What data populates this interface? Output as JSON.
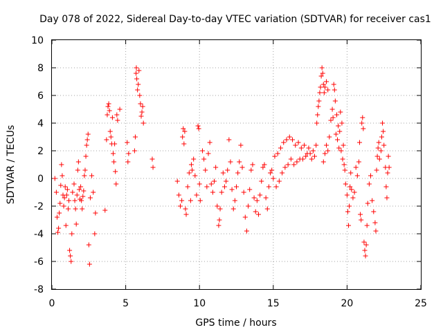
{
  "chart_data": {
    "type": "scatter",
    "title": "Day 078 of 2022, Sidereal Day-to-day VTEC variation (SDTVAR) for receiver cas1",
    "xlabel": "GPS time / hours",
    "ylabel": "SDTVAR / TECUs",
    "xlim": [
      0,
      25
    ],
    "ylim": [
      -8,
      10
    ],
    "xticks": [
      "0",
      "5",
      "10",
      "15",
      "20",
      "25"
    ],
    "yticks": [
      "-8",
      "-6",
      "-4",
      "-2",
      "0",
      "2",
      "4",
      "6",
      "8",
      "10"
    ],
    "grid": true,
    "marker": "+",
    "series_color": "#ff0000",
    "series": [
      {
        "name": "SDTVAR",
        "points": [
          [
            0.2,
            0.0
          ],
          [
            0.3,
            -1.0
          ],
          [
            0.35,
            -2.8
          ],
          [
            0.4,
            -3.9
          ],
          [
            0.45,
            -3.6
          ],
          [
            0.5,
            -2.5
          ],
          [
            0.55,
            -1.8
          ],
          [
            0.6,
            -0.5
          ],
          [
            0.65,
            1.0
          ],
          [
            0.7,
            0.2
          ],
          [
            0.75,
            -1.2
          ],
          [
            0.8,
            -2.0
          ],
          [
            0.85,
            -1.4
          ],
          [
            0.9,
            -0.6
          ],
          [
            0.95,
            -3.4
          ],
          [
            1.0,
            -1.2
          ],
          [
            1.05,
            -0.8
          ],
          [
            1.1,
            -2.2
          ],
          [
            1.15,
            -1.6
          ],
          [
            1.2,
            -5.2
          ],
          [
            1.25,
            -5.6
          ],
          [
            1.3,
            -6.0
          ],
          [
            1.35,
            -4.0
          ],
          [
            1.4,
            -1.0
          ],
          [
            1.5,
            -0.4
          ],
          [
            1.55,
            -1.6
          ],
          [
            1.6,
            -2.2
          ],
          [
            1.65,
            -3.3
          ],
          [
            1.7,
            -1.2
          ],
          [
            1.75,
            0.6
          ],
          [
            1.8,
            1.2
          ],
          [
            1.85,
            -0.8
          ],
          [
            1.9,
            -1.5
          ],
          [
            1.95,
            -0.6
          ],
          [
            2.0,
            -1.6
          ],
          [
            2.05,
            -2.2
          ],
          [
            2.1,
            -1.3
          ],
          [
            2.15,
            -0.9
          ],
          [
            2.2,
            0.2
          ],
          [
            2.25,
            0.6
          ],
          [
            2.3,
            1.6
          ],
          [
            2.35,
            2.4
          ],
          [
            2.4,
            2.8
          ],
          [
            2.45,
            3.2
          ],
          [
            2.5,
            -4.8
          ],
          [
            2.55,
            -6.2
          ],
          [
            2.6,
            -1.4
          ],
          [
            2.7,
            0.2
          ],
          [
            2.8,
            -1.0
          ],
          [
            2.9,
            -4.0
          ],
          [
            2.95,
            -2.5
          ],
          [
            3.6,
            -2.3
          ],
          [
            3.7,
            2.8
          ],
          [
            3.75,
            4.6
          ],
          [
            3.8,
            5.2
          ],
          [
            3.85,
            5.4
          ],
          [
            3.9,
            4.9
          ],
          [
            3.95,
            3.4
          ],
          [
            4.0,
            3.0
          ],
          [
            4.05,
            2.5
          ],
          [
            4.1,
            4.4
          ],
          [
            4.15,
            1.8
          ],
          [
            4.2,
            1.2
          ],
          [
            4.25,
            2.5
          ],
          [
            4.3,
            0.5
          ],
          [
            4.35,
            -0.4
          ],
          [
            4.4,
            4.6
          ],
          [
            4.45,
            4.2
          ],
          [
            4.6,
            5.0
          ],
          [
            5.1,
            2.6
          ],
          [
            5.15,
            1.2
          ],
          [
            5.2,
            1.8
          ],
          [
            5.6,
            2.0
          ],
          [
            5.65,
            3.0
          ],
          [
            5.7,
            7.6
          ],
          [
            5.72,
            8.0
          ],
          [
            5.75,
            7.2
          ],
          [
            5.8,
            6.4
          ],
          [
            5.85,
            6.8
          ],
          [
            5.9,
            7.8
          ],
          [
            5.95,
            6.0
          ],
          [
            6.0,
            5.4
          ],
          [
            6.05,
            4.5
          ],
          [
            6.1,
            4.8
          ],
          [
            6.15,
            5.2
          ],
          [
            6.2,
            4.0
          ],
          [
            6.8,
            1.4
          ],
          [
            6.85,
            0.8
          ],
          [
            8.5,
            -0.2
          ],
          [
            8.6,
            -1.2
          ],
          [
            8.7,
            -2.0
          ],
          [
            8.8,
            -1.6
          ],
          [
            8.85,
            3.0
          ],
          [
            8.9,
            3.6
          ],
          [
            8.95,
            2.5
          ],
          [
            9.0,
            3.4
          ],
          [
            9.05,
            -2.2
          ],
          [
            9.1,
            -2.6
          ],
          [
            9.2,
            -0.6
          ],
          [
            9.3,
            0.4
          ],
          [
            9.4,
            -1.6
          ],
          [
            9.45,
            1.0
          ],
          [
            9.5,
            0.6
          ],
          [
            9.6,
            1.4
          ],
          [
            9.7,
            0.2
          ],
          [
            9.8,
            -1.2
          ],
          [
            9.9,
            3.8
          ],
          [
            9.95,
            3.6
          ],
          [
            10.0,
            -0.4
          ],
          [
            10.05,
            -1.6
          ],
          [
            10.2,
            2.0
          ],
          [
            10.3,
            1.4
          ],
          [
            10.4,
            0.6
          ],
          [
            10.5,
            -0.6
          ],
          [
            10.6,
            1.8
          ],
          [
            10.7,
            2.6
          ],
          [
            10.8,
            -0.4
          ],
          [
            10.9,
            -1.0
          ],
          [
            11.0,
            -0.2
          ],
          [
            11.1,
            0.8
          ],
          [
            11.2,
            -2.0
          ],
          [
            11.3,
            -3.4
          ],
          [
            11.35,
            -3.0
          ],
          [
            11.4,
            -2.2
          ],
          [
            11.5,
            -1.0
          ],
          [
            11.6,
            0.4
          ],
          [
            11.7,
            -0.6
          ],
          [
            11.8,
            -0.2
          ],
          [
            11.9,
            0.6
          ],
          [
            12.0,
            2.8
          ],
          [
            12.1,
            1.2
          ],
          [
            12.2,
            -0.8
          ],
          [
            12.3,
            -2.2
          ],
          [
            12.4,
            -1.6
          ],
          [
            12.5,
            -0.6
          ],
          [
            12.6,
            0.4
          ],
          [
            12.7,
            1.2
          ],
          [
            12.8,
            2.4
          ],
          [
            12.9,
            0.8
          ],
          [
            13.0,
            -1.0
          ],
          [
            13.1,
            -2.8
          ],
          [
            13.2,
            -3.8
          ],
          [
            13.3,
            -2.0
          ],
          [
            13.4,
            -0.8
          ],
          [
            13.5,
            0.6
          ],
          [
            13.6,
            1.0
          ],
          [
            13.7,
            -1.4
          ],
          [
            13.8,
            -2.4
          ],
          [
            13.9,
            -1.6
          ],
          [
            14.0,
            -2.6
          ],
          [
            14.1,
            -1.2
          ],
          [
            14.2,
            -0.2
          ],
          [
            14.3,
            0.8
          ],
          [
            14.4,
            1.0
          ],
          [
            14.5,
            -1.4
          ],
          [
            14.6,
            -2.2
          ],
          [
            14.7,
            -0.6
          ],
          [
            14.8,
            0.4
          ],
          [
            14.9,
            0.6
          ],
          [
            15.0,
            0.0
          ],
          [
            15.1,
            1.6
          ],
          [
            15.2,
            -0.6
          ],
          [
            15.3,
            1.8
          ],
          [
            15.4,
            -0.2
          ],
          [
            15.5,
            2.2
          ],
          [
            15.6,
            0.4
          ],
          [
            15.7,
            2.6
          ],
          [
            15.8,
            0.8
          ],
          [
            15.9,
            2.8
          ],
          [
            16.0,
            1.0
          ],
          [
            16.1,
            3.0
          ],
          [
            16.2,
            1.4
          ],
          [
            16.3,
            2.8
          ],
          [
            16.4,
            1.0
          ],
          [
            16.5,
            2.4
          ],
          [
            16.6,
            1.2
          ],
          [
            16.7,
            2.6
          ],
          [
            16.8,
            1.4
          ],
          [
            16.9,
            2.2
          ],
          [
            17.0,
            1.4
          ],
          [
            17.1,
            2.4
          ],
          [
            17.2,
            1.6
          ],
          [
            17.3,
            1.8
          ],
          [
            17.4,
            2.2
          ],
          [
            17.5,
            1.8
          ],
          [
            17.6,
            1.4
          ],
          [
            17.7,
            2.0
          ],
          [
            17.8,
            1.6
          ],
          [
            17.9,
            2.4
          ],
          [
            17.95,
            4.0
          ],
          [
            18.0,
            4.6
          ],
          [
            18.05,
            5.2
          ],
          [
            18.1,
            5.6
          ],
          [
            18.15,
            6.2
          ],
          [
            18.2,
            6.6
          ],
          [
            18.25,
            7.4
          ],
          [
            18.3,
            8.0
          ],
          [
            18.35,
            7.6
          ],
          [
            18.4,
            6.8
          ],
          [
            18.45,
            6.2
          ],
          [
            18.5,
            6.6
          ],
          [
            18.6,
            7.0
          ],
          [
            18.7,
            6.4
          ],
          [
            18.4,
            1.2
          ],
          [
            18.5,
            1.8
          ],
          [
            18.6,
            2.4
          ],
          [
            18.7,
            2.0
          ],
          [
            18.8,
            3.0
          ],
          [
            18.9,
            4.2
          ],
          [
            19.0,
            5.0
          ],
          [
            19.05,
            4.4
          ],
          [
            19.1,
            6.8
          ],
          [
            19.15,
            6.4
          ],
          [
            19.2,
            5.6
          ],
          [
            19.25,
            3.2
          ],
          [
            19.3,
            4.6
          ],
          [
            19.35,
            2.8
          ],
          [
            19.4,
            3.8
          ],
          [
            19.45,
            2.2
          ],
          [
            19.5,
            3.4
          ],
          [
            19.55,
            4.8
          ],
          [
            19.6,
            2.0
          ],
          [
            19.65,
            4.0
          ],
          [
            19.7,
            1.4
          ],
          [
            19.75,
            2.4
          ],
          [
            19.8,
            1.0
          ],
          [
            19.85,
            0.6
          ],
          [
            19.9,
            -0.4
          ],
          [
            20.0,
            -1.2
          ],
          [
            20.05,
            -2.4
          ],
          [
            20.1,
            -3.4
          ],
          [
            20.15,
            -2.0
          ],
          [
            20.2,
            -0.6
          ],
          [
            20.25,
            0.4
          ],
          [
            20.3,
            -0.8
          ],
          [
            20.4,
            -1.4
          ],
          [
            20.5,
            -1.0
          ],
          [
            20.6,
            0.8
          ],
          [
            20.7,
            0.2
          ],
          [
            20.8,
            1.2
          ],
          [
            20.85,
            2.6
          ],
          [
            20.9,
            -2.6
          ],
          [
            20.95,
            -3.0
          ],
          [
            21.0,
            4.0
          ],
          [
            21.05,
            4.4
          ],
          [
            21.1,
            3.6
          ],
          [
            21.15,
            -4.6
          ],
          [
            21.2,
            -5.2
          ],
          [
            21.25,
            -5.6
          ],
          [
            21.3,
            -4.8
          ],
          [
            21.35,
            -3.4
          ],
          [
            21.4,
            -1.8
          ],
          [
            21.5,
            -0.4
          ],
          [
            21.6,
            0.2
          ],
          [
            21.7,
            -1.6
          ],
          [
            21.8,
            -2.4
          ],
          [
            21.9,
            -3.2
          ],
          [
            21.95,
            -3.8
          ],
          [
            22.0,
            0.6
          ],
          [
            22.05,
            1.6
          ],
          [
            22.1,
            2.2
          ],
          [
            22.15,
            2.6
          ],
          [
            22.2,
            1.4
          ],
          [
            22.3,
            2.0
          ],
          [
            22.35,
            3.0
          ],
          [
            22.4,
            4.0
          ],
          [
            22.45,
            3.4
          ],
          [
            22.5,
            2.4
          ],
          [
            22.6,
            0.8
          ],
          [
            22.65,
            -0.6
          ],
          [
            22.7,
            -1.4
          ],
          [
            22.75,
            0.4
          ],
          [
            22.8,
            1.6
          ],
          [
            22.85,
            0.8
          ]
        ]
      }
    ]
  }
}
